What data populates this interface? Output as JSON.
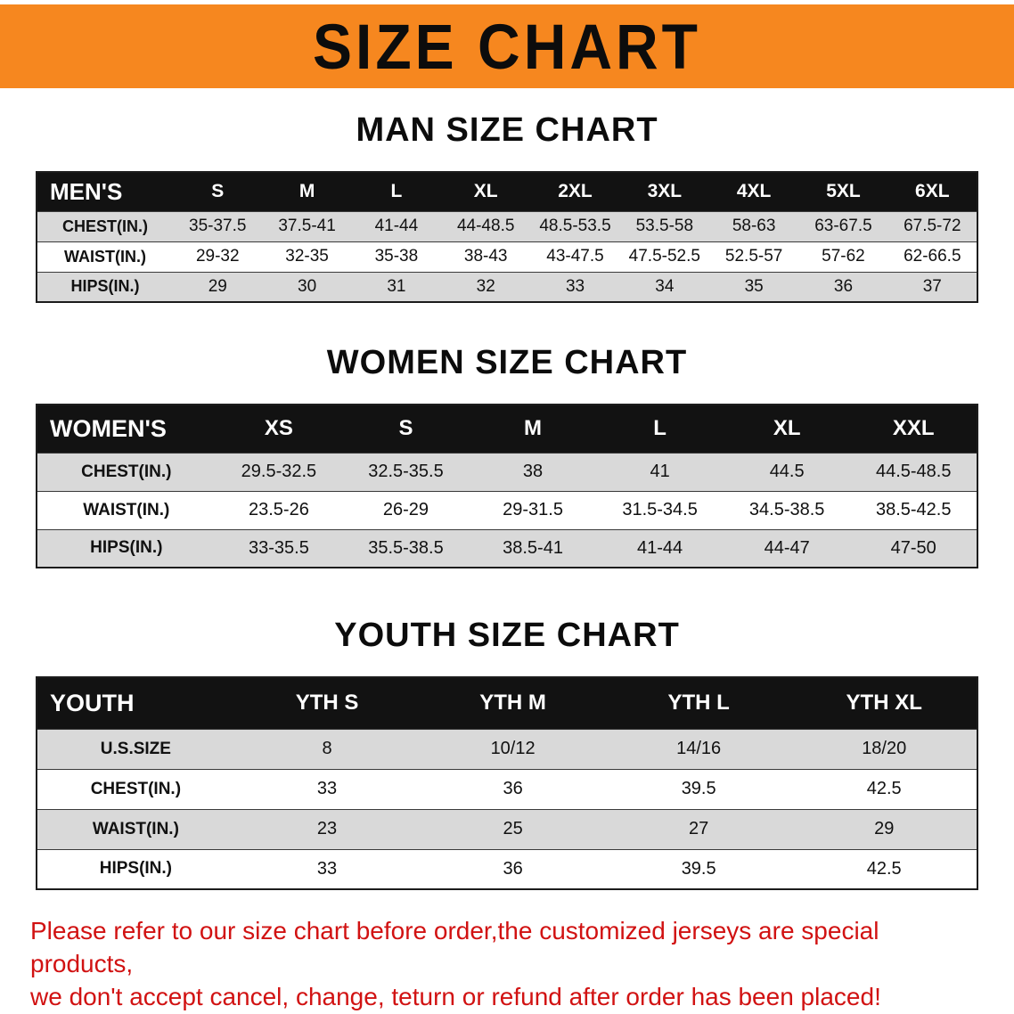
{
  "banner": {
    "title": "SIZE CHART"
  },
  "chart_data": [
    {
      "type": "table",
      "title": "MAN SIZE CHART",
      "header": [
        "MEN'S",
        "S",
        "M",
        "L",
        "XL",
        "2XL",
        "3XL",
        "4XL",
        "5XL",
        "6XL"
      ],
      "rows": [
        [
          "CHEST(IN.)",
          "35-37.5",
          "37.5-41",
          "41-44",
          "44-48.5",
          "48.5-53.5",
          "53.5-58",
          "58-63",
          "63-67.5",
          "67.5-72"
        ],
        [
          "WAIST(IN.)",
          "29-32",
          "32-35",
          "35-38",
          "38-43",
          "43-47.5",
          "47.5-52.5",
          "52.5-57",
          "57-62",
          "62-66.5"
        ],
        [
          "HIPS(IN.)",
          "29",
          "30",
          "31",
          "32",
          "33",
          "34",
          "35",
          "36",
          "37"
        ]
      ]
    },
    {
      "type": "table",
      "title": "WOMEN SIZE CHART",
      "header": [
        "WOMEN'S",
        "XS",
        "S",
        "M",
        "L",
        "XL",
        "XXL"
      ],
      "rows": [
        [
          "CHEST(IN.)",
          "29.5-32.5",
          "32.5-35.5",
          "38",
          "41",
          "44.5",
          "44.5-48.5"
        ],
        [
          "WAIST(IN.)",
          "23.5-26",
          "26-29",
          "29-31.5",
          "31.5-34.5",
          "34.5-38.5",
          "38.5-42.5"
        ],
        [
          "HIPS(IN.)",
          "33-35.5",
          "35.5-38.5",
          "38.5-41",
          "41-44",
          "44-47",
          "47-50"
        ]
      ]
    },
    {
      "type": "table",
      "title": "YOUTH SIZE CHART",
      "header": [
        "YOUTH",
        "YTH S",
        "YTH M",
        "YTH L",
        "YTH XL"
      ],
      "rows": [
        [
          "U.S.SIZE",
          "8",
          "10/12",
          "14/16",
          "18/20"
        ],
        [
          "CHEST(IN.)",
          "33",
          "36",
          "39.5",
          "42.5"
        ],
        [
          "WAIST(IN.)",
          "23",
          "25",
          "27",
          "29"
        ],
        [
          "HIPS(IN.)",
          "33",
          "36",
          "39.5",
          "42.5"
        ]
      ]
    }
  ],
  "disclaimer": {
    "line1": "Please refer to our size chart before order,the customized jerseys are special products,",
    "line2": "we don't accept cancel, change, teturn or refund after order has been placed!"
  },
  "colors": {
    "banner_bg": "#f6871f",
    "table_header_bg": "#121212",
    "row_shade": "#d9d9d9",
    "disclaimer_red": "#d11212"
  }
}
